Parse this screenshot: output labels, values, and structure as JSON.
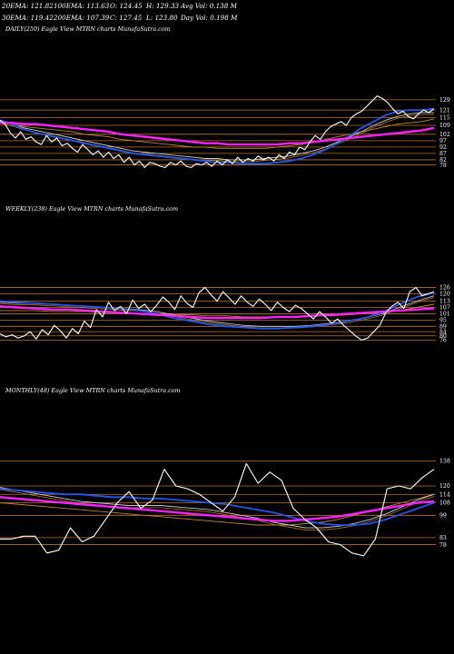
{
  "header": {
    "row1": [
      {
        "label": "20EMA: 121.82"
      },
      {
        "label": "100EMA: 113.63"
      },
      {
        "label": "O: 124.45"
      },
      {
        "label": "H: 129.33"
      },
      {
        "label": "Avg Vol: 0.138 M"
      }
    ],
    "row2": [
      {
        "label": "30EMA: 119.42"
      },
      {
        "label": "200EMA: 107.39"
      },
      {
        "label": "C: 127.45"
      },
      {
        "label": "L: 123.80"
      },
      {
        "label": "Day Vol: 0.198 M"
      }
    ]
  },
  "colors": {
    "background": "#000000",
    "price": "#ffffff",
    "ema_blue": "#2255ee",
    "ema_magenta": "#ff22ff",
    "ema_gold": "#b8862d",
    "ema_grey": "#cccccc",
    "level_line": "#b8742d"
  },
  "chart_data": [
    {
      "type": "line",
      "title": "DAILY(250) Eagle  View  MTRN  charts MunafaSutra.com",
      "y_ticks": [
        129,
        121,
        115,
        109,
        102,
        97,
        92,
        87,
        82,
        78
      ],
      "ylim": [
        72,
        136
      ],
      "price_series": [
        113,
        110,
        103,
        99,
        104,
        98,
        100,
        96,
        94,
        101,
        96,
        99,
        93,
        95,
        91,
        88,
        94,
        90,
        86,
        89,
        84,
        88,
        83,
        86,
        80,
        84,
        78,
        81,
        76,
        80,
        79,
        77,
        76,
        80,
        78,
        81,
        77,
        76,
        79,
        78,
        80,
        77,
        81,
        78,
        82,
        79,
        84,
        80,
        83,
        81,
        85,
        82,
        84,
        81,
        86,
        83,
        88,
        86,
        92,
        90,
        96,
        101,
        98,
        104,
        108,
        110,
        112,
        109,
        115,
        118,
        120,
        124,
        128,
        132,
        130,
        127,
        122,
        118,
        120,
        116,
        114,
        118,
        121,
        119,
        122
      ],
      "series": [
        {
          "name": "20EMA",
          "color": "#2255ee",
          "values": [
            113,
            110,
            106,
            103,
            101,
            99,
            97,
            95,
            93,
            91,
            89,
            87,
            86,
            85,
            84,
            83,
            82,
            81,
            80,
            80,
            79,
            79,
            79,
            80,
            81,
            83,
            86,
            90,
            95,
            101,
            107,
            112,
            117,
            120,
            121,
            121,
            122
          ]
        },
        {
          "name": "30EMA",
          "color": "#cccccc",
          "values": [
            112,
            110,
            107,
            105,
            103,
            101,
            99,
            97,
            95,
            93,
            91,
            89,
            88,
            87,
            86,
            85,
            84,
            83,
            83,
            82,
            82,
            82,
            83,
            84,
            85,
            87,
            89,
            92,
            96,
            100,
            104,
            109,
            113,
            116,
            118,
            119,
            119
          ]
        },
        {
          "name": "100EMA",
          "color": "#b8862d",
          "values": [
            111,
            110,
            108,
            107,
            106,
            105,
            104,
            102,
            101,
            100,
            98,
            97,
            96,
            95,
            94,
            93,
            92,
            92,
            91,
            91,
            91,
            91,
            91,
            92,
            93,
            94,
            96,
            98,
            100,
            102,
            104,
            106,
            108,
            110,
            111,
            112,
            114
          ]
        },
        {
          "name": "200EMA",
          "color": "#ff22ff",
          "values": [
            111,
            111,
            110,
            110,
            109,
            108,
            107,
            106,
            105,
            104,
            102,
            101,
            100,
            99,
            98,
            97,
            96,
            95,
            95,
            94,
            94,
            94,
            94,
            94,
            95,
            95,
            96,
            97,
            98,
            99,
            100,
            101,
            102,
            103,
            104,
            105,
            107
          ]
        }
      ]
    },
    {
      "type": "line",
      "title": "WEEKLY(238) Eagle  View  MTRN  charts MunafaSutra.com",
      "y_ticks": [
        126,
        120,
        113,
        107,
        101,
        95,
        89,
        84,
        80,
        76
      ],
      "ylim": [
        66,
        135
      ],
      "price_series": [
        82,
        79,
        81,
        78,
        80,
        84,
        77,
        86,
        81,
        90,
        85,
        78,
        87,
        82,
        94,
        88,
        105,
        98,
        112,
        104,
        108,
        101,
        114,
        106,
        110,
        103,
        109,
        117,
        112,
        105,
        118,
        111,
        107,
        121,
        126,
        119,
        113,
        122,
        116,
        110,
        118,
        112,
        108,
        115,
        110,
        104,
        112,
        107,
        103,
        109,
        106,
        101,
        96,
        103,
        98,
        92,
        96,
        90,
        85,
        80,
        76,
        78,
        84,
        90,
        102,
        108,
        112,
        106,
        122,
        126,
        118,
        120,
        122
      ],
      "series": [
        {
          "name": "20EMA",
          "color": "#2255ee",
          "values": [
            113,
            112,
            111,
            110,
            109,
            108,
            107,
            106,
            104,
            101,
            97,
            94,
            91,
            89,
            88,
            87,
            87,
            88,
            89,
            91,
            94,
            97,
            102,
            110,
            117,
            121
          ]
        },
        {
          "name": "30EMA",
          "color": "#cccccc",
          "values": [
            112,
            111,
            111,
            110,
            109,
            108,
            107,
            106,
            105,
            103,
            100,
            97,
            94,
            92,
            90,
            89,
            89,
            89,
            90,
            92,
            94,
            97,
            101,
            107,
            113,
            118
          ]
        },
        {
          "name": "100EMA",
          "color": "#b8862d",
          "values": [
            104,
            104,
            104,
            103,
            103,
            103,
            102,
            102,
            101,
            101,
            100,
            100,
            99,
            99,
            98,
            98,
            98,
            98,
            99,
            99,
            100,
            101,
            102,
            104,
            107,
            110
          ]
        },
        {
          "name": "200EMA",
          "color": "#ff22ff",
          "values": [
            108,
            107,
            106,
            105,
            105,
            104,
            103,
            102,
            101,
            100,
            99,
            98,
            97,
            97,
            97,
            97,
            98,
            98,
            99,
            100,
            101,
            102,
            103,
            104,
            105,
            106
          ]
        }
      ]
    },
    {
      "type": "line",
      "title": "MONTHLY(48) Eagle  View  MTRN  charts MunafaSutra.com",
      "y_ticks": [
        138,
        120,
        114,
        108,
        99,
        83,
        78
      ],
      "ylim": [
        66,
        148
      ],
      "price_series": [
        82,
        82,
        84,
        84,
        72,
        74,
        90,
        80,
        84,
        96,
        108,
        116,
        104,
        110,
        132,
        120,
        118,
        114,
        108,
        102,
        112,
        136,
        122,
        130,
        124,
        104,
        96,
        90,
        80,
        78,
        72,
        70,
        82,
        118,
        120,
        118,
        126,
        132
      ],
      "series": [
        {
          "name": "20EMA",
          "color": "#2255ee",
          "values": [
            118,
            117,
            116,
            115,
            114,
            114,
            113,
            112,
            112,
            111,
            111,
            110,
            109,
            108,
            107,
            105,
            103,
            101,
            98,
            95,
            93,
            92,
            92,
            93,
            96,
            100,
            104,
            108
          ]
        },
        {
          "name": "30EMA",
          "color": "#cccccc",
          "values": [
            119,
            117,
            115,
            113,
            111,
            109,
            108,
            107,
            106,
            106,
            106,
            105,
            104,
            103,
            101,
            99,
            97,
            94,
            92,
            90,
            90,
            91,
            93,
            96,
            100,
            105,
            110,
            114
          ]
        },
        {
          "name": "100EMA",
          "color": "#b8862d",
          "values": [
            108,
            107,
            106,
            105,
            104,
            103,
            102,
            101,
            100,
            99,
            98,
            97,
            96,
            95,
            94,
            93,
            92,
            92,
            92,
            93,
            94,
            96,
            99,
            102,
            105,
            108,
            111,
            114
          ]
        },
        {
          "name": "200EMA",
          "color": "#ff22ff",
          "values": [
            112,
            111,
            110,
            109,
            108,
            107,
            106,
            105,
            104,
            103,
            102,
            101,
            100,
            99,
            98,
            97,
            96,
            95,
            95,
            96,
            97,
            98,
            100,
            102,
            104,
            106,
            108,
            109
          ]
        }
      ]
    }
  ]
}
